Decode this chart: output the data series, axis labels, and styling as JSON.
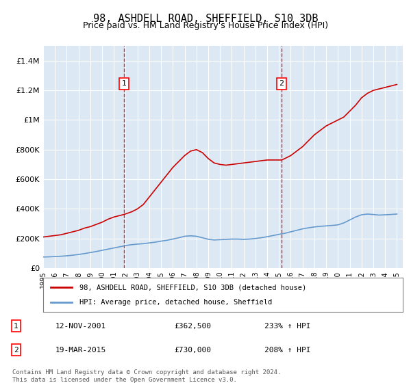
{
  "title": "98, ASHDELL ROAD, SHEFFIELD, S10 3DB",
  "subtitle": "Price paid vs. HM Land Registry's House Price Index (HPI)",
  "title_fontsize": 11,
  "subtitle_fontsize": 9,
  "background_color": "#ffffff",
  "plot_bg_color": "#dce9f5",
  "grid_color": "#ffffff",
  "ylim": [
    0,
    1500000
  ],
  "xlim_start": 1995.0,
  "xlim_end": 2025.5,
  "yticks": [
    0,
    200000,
    400000,
    600000,
    800000,
    1000000,
    1200000,
    1400000
  ],
  "ytick_labels": [
    "£0",
    "£200K",
    "£400K",
    "£600K",
    "£800K",
    "£1M",
    "£1.2M",
    "£1.4M"
  ],
  "xticks": [
    1995,
    1996,
    1997,
    1998,
    1999,
    2000,
    2001,
    2002,
    2003,
    2004,
    2005,
    2006,
    2007,
    2008,
    2009,
    2010,
    2011,
    2012,
    2013,
    2014,
    2015,
    2016,
    2017,
    2018,
    2019,
    2020,
    2021,
    2022,
    2023,
    2024,
    2025
  ],
  "red_line_color": "#cc0000",
  "blue_line_color": "#6699cc",
  "marker1_x": 2001.87,
  "marker1_y": 362500,
  "marker2_x": 2015.22,
  "marker2_y": 730000,
  "marker1_label": "1",
  "marker2_label": "2",
  "legend_box_color": "#ffffff",
  "legend_red_label": "98, ASHDELL ROAD, SHEFFIELD, S10 3DB (detached house)",
  "legend_blue_label": "HPI: Average price, detached house, Sheffield",
  "table_row1": [
    "1",
    "12-NOV-2001",
    "£362,500",
    "233% ↑ HPI"
  ],
  "table_row2": [
    "2",
    "19-MAR-2015",
    "£730,000",
    "208% ↑ HPI"
  ],
  "footnote": "Contains HM Land Registry data © Crown copyright and database right 2024.\nThis data is licensed under the Open Government Licence v3.0.",
  "red_x": [
    1995.0,
    1995.5,
    1996.0,
    1996.5,
    1997.0,
    1997.5,
    1998.0,
    1998.5,
    1999.0,
    1999.5,
    2000.0,
    2000.5,
    2001.0,
    2001.87,
    2002.5,
    2003.0,
    2003.5,
    2004.0,
    2004.5,
    2005.0,
    2005.5,
    2006.0,
    2006.5,
    2007.0,
    2007.5,
    2008.0,
    2008.5,
    2009.0,
    2009.5,
    2010.0,
    2010.5,
    2011.0,
    2011.5,
    2012.0,
    2012.5,
    2013.0,
    2013.5,
    2014.0,
    2014.5,
    2015.22,
    2015.5,
    2016.0,
    2016.5,
    2017.0,
    2017.5,
    2018.0,
    2018.5,
    2019.0,
    2019.5,
    2020.0,
    2020.5,
    2021.0,
    2021.5,
    2022.0,
    2022.5,
    2023.0,
    2023.5,
    2024.0,
    2024.5,
    2025.0
  ],
  "red_y": [
    210000,
    215000,
    220000,
    225000,
    235000,
    245000,
    255000,
    270000,
    280000,
    295000,
    310000,
    330000,
    345000,
    362500,
    380000,
    400000,
    430000,
    480000,
    530000,
    580000,
    630000,
    680000,
    720000,
    760000,
    790000,
    800000,
    780000,
    740000,
    710000,
    700000,
    695000,
    700000,
    705000,
    710000,
    715000,
    720000,
    725000,
    730000,
    730000,
    730000,
    740000,
    760000,
    790000,
    820000,
    860000,
    900000,
    930000,
    960000,
    980000,
    1000000,
    1020000,
    1060000,
    1100000,
    1150000,
    1180000,
    1200000,
    1210000,
    1220000,
    1230000,
    1240000
  ],
  "blue_x": [
    1995.0,
    1995.5,
    1996.0,
    1996.5,
    1997.0,
    1997.5,
    1998.0,
    1998.5,
    1999.0,
    1999.5,
    2000.0,
    2000.5,
    2001.0,
    2001.5,
    2002.0,
    2002.5,
    2003.0,
    2003.5,
    2004.0,
    2004.5,
    2005.0,
    2005.5,
    2006.0,
    2006.5,
    2007.0,
    2007.5,
    2008.0,
    2008.5,
    2009.0,
    2009.5,
    2010.0,
    2010.5,
    2011.0,
    2011.5,
    2012.0,
    2012.5,
    2013.0,
    2013.5,
    2014.0,
    2014.5,
    2015.0,
    2015.5,
    2016.0,
    2016.5,
    2017.0,
    2017.5,
    2018.0,
    2018.5,
    2019.0,
    2019.5,
    2020.0,
    2020.5,
    2021.0,
    2021.5,
    2022.0,
    2022.5,
    2023.0,
    2023.5,
    2024.0,
    2024.5,
    2025.0
  ],
  "blue_y": [
    75000,
    76000,
    78000,
    80000,
    83000,
    87000,
    92000,
    98000,
    105000,
    112000,
    120000,
    128000,
    136000,
    144000,
    152000,
    158000,
    162000,
    165000,
    170000,
    175000,
    182000,
    188000,
    196000,
    205000,
    215000,
    218000,
    215000,
    205000,
    195000,
    190000,
    192000,
    194000,
    196000,
    196000,
    194000,
    196000,
    200000,
    205000,
    212000,
    220000,
    228000,
    235000,
    245000,
    255000,
    265000,
    272000,
    278000,
    282000,
    285000,
    288000,
    292000,
    305000,
    325000,
    345000,
    360000,
    365000,
    362000,
    358000,
    360000,
    362000,
    365000
  ]
}
